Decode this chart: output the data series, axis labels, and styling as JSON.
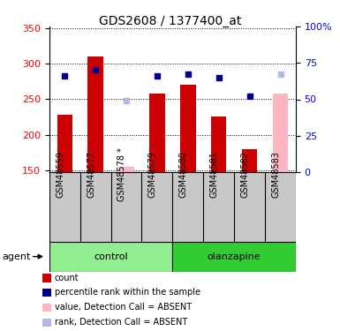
{
  "title": "GDS2608 / 1377400_at",
  "samples": [
    "GSM48559",
    "GSM48577",
    "GSM48578 *",
    "GSM48579",
    "GSM48580",
    "GSM48581",
    "GSM48582",
    "GSM48583"
  ],
  "bar_values": [
    228,
    310,
    155,
    258,
    270,
    226,
    180,
    258
  ],
  "bar_absent": [
    false,
    false,
    true,
    false,
    false,
    false,
    false,
    true
  ],
  "rank_values": [
    66,
    70,
    49,
    66,
    67,
    65,
    52,
    67
  ],
  "rank_absent": [
    false,
    false,
    true,
    false,
    false,
    false,
    false,
    true
  ],
  "groups": [
    {
      "label": "control",
      "start": 0,
      "end": 3
    },
    {
      "label": "olanzapine",
      "start": 4,
      "end": 7
    }
  ],
  "ylim_left": [
    148,
    352
  ],
  "ylim_right": [
    0,
    100
  ],
  "yticks_left": [
    150,
    200,
    250,
    300,
    350
  ],
  "yticks_right": [
    0,
    25,
    50,
    75,
    100
  ],
  "ytick_labels_right": [
    "0",
    "25",
    "50",
    "75",
    "100%"
  ],
  "bar_color": "#CC0000",
  "bar_absent_color": "#FFB6C1",
  "rank_color": "#00008B",
  "rank_absent_color": "#B0B8E8",
  "group_bg_color": "#C8C8C8",
  "control_color": "#90EE90",
  "olanzapine_color": "#32CD32",
  "agent_label": "agent",
  "legend_items": [
    {
      "color": "#CC0000",
      "type": "square",
      "label": "count"
    },
    {
      "color": "#00008B",
      "type": "square",
      "label": "percentile rank within the sample"
    },
    {
      "color": "#FFB6C1",
      "type": "square",
      "label": "value, Detection Call = ABSENT"
    },
    {
      "color": "#B0B8E8",
      "type": "square",
      "label": "rank, Detection Call = ABSENT"
    }
  ]
}
